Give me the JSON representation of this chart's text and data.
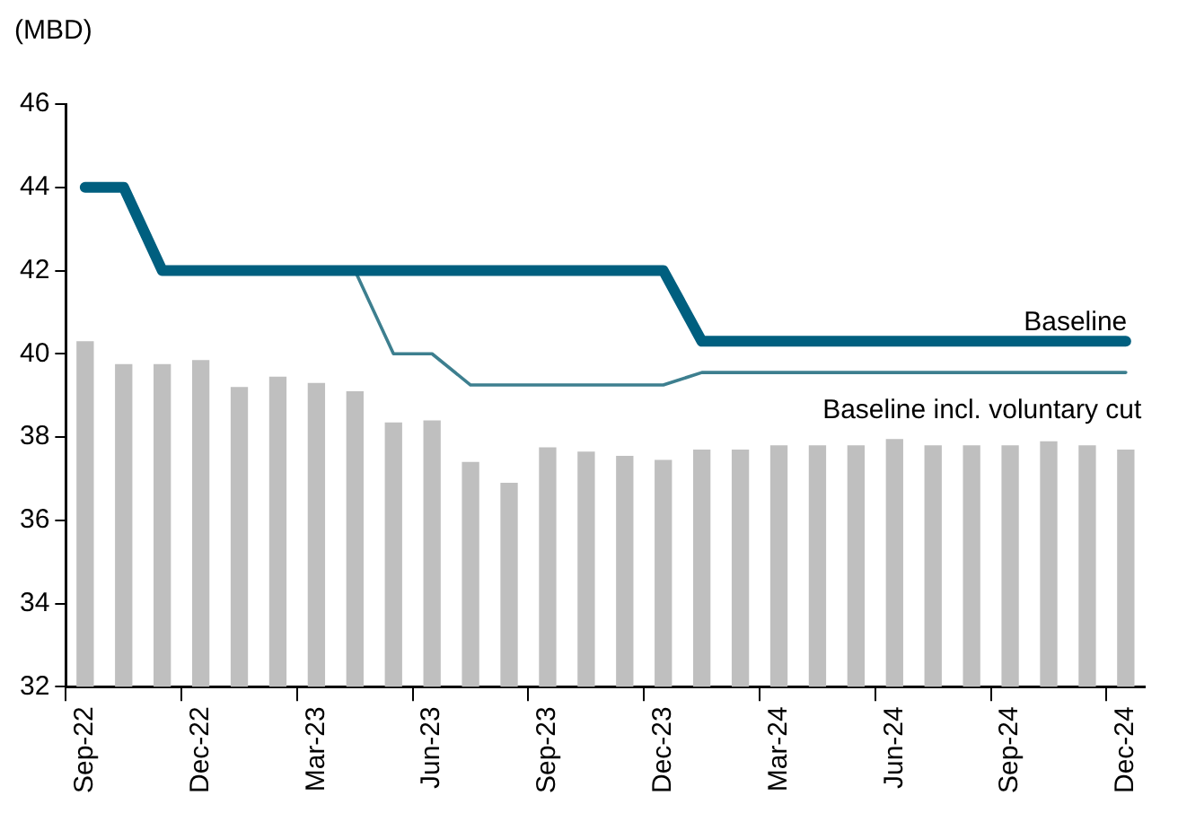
{
  "chart_data": {
    "type": "bar",
    "ylabel": "(MBD)",
    "categories": [
      "Sep-22",
      null,
      null,
      "Dec-22",
      null,
      null,
      "Mar-23",
      null,
      null,
      "Jun-23",
      null,
      null,
      "Sep-23",
      null,
      null,
      "Dec-23",
      null,
      null,
      "Mar-24",
      null,
      null,
      "Jun-24",
      null,
      null,
      "Sep-24",
      null,
      null,
      "Dec-24"
    ],
    "series": [
      {
        "color": "#bfbfbf",
        "values": [
          40.3,
          39.75,
          39.75,
          39.85,
          39.2,
          39.45,
          39.3,
          39.1,
          38.35,
          38.4,
          37.4,
          36.9,
          37.75,
          37.65,
          37.55,
          37.45,
          37.7,
          37.7,
          37.8,
          37.8,
          37.8,
          37.95,
          37.8,
          37.8,
          37.8,
          37.9,
          37.8,
          37.7
        ]
      },
      {
        "type": "line",
        "name": "Baseline",
        "color": "#005f7f",
        "values": [
          44,
          44,
          42,
          42,
          42,
          42,
          42,
          42,
          42,
          42,
          42,
          42,
          42,
          42,
          42,
          42,
          40.3,
          40.3,
          40.3,
          40.3,
          40.3,
          40.3,
          40.3,
          40.3,
          40.3,
          40.3,
          40.3,
          40.3
        ]
      },
      {
        "type": "line",
        "name": "Baseline incl. voluntary cut",
        "color": "#3d7f8f",
        "values": [
          null,
          null,
          null,
          null,
          null,
          null,
          null,
          42,
          40,
          40,
          39.25,
          39.25,
          39.25,
          39.25,
          39.25,
          39.25,
          39.55,
          39.55,
          39.55,
          39.55,
          39.55,
          39.55,
          39.55,
          39.55,
          39.55,
          39.55,
          39.55,
          39.55
        ]
      }
    ],
    "ylim": [
      32,
      46
    ],
    "yticks": [
      32,
      34,
      36,
      38,
      40,
      42,
      44,
      46
    ],
    "legend": false
  }
}
